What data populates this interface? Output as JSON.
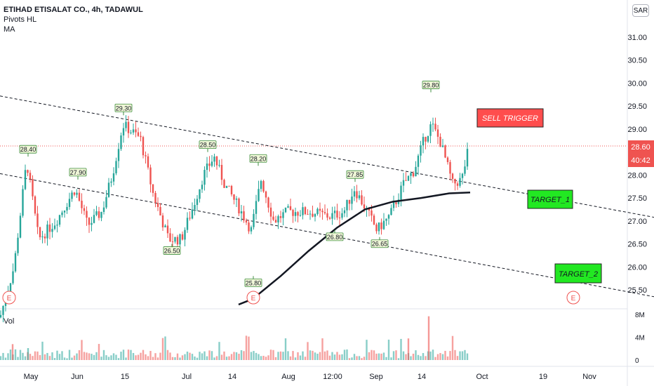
{
  "legend": {
    "title": "ETIHAD ETISALAT CO., 4h, TADAWUL",
    "line2": "Pivots HL",
    "line3": "MA"
  },
  "currency": "SAR",
  "volume_label": "Vol",
  "price_tag": "28.60",
  "countdown": "40:42",
  "colors": {
    "up": "#26a69a",
    "down": "#ef5350",
    "ma": "#131722",
    "trend": "#131722",
    "sell": "#ff4d4d",
    "target": "#22e822",
    "pivot_bg": "#f0f7d8",
    "pivot_border": "#3c8c3c",
    "price_tag": "#ef5350"
  },
  "annotations": {
    "sell": "SELL TRIGGER",
    "target1": "TARGET_1",
    "target2": "TARGET_2"
  },
  "chart_data": {
    "type": "candlestick",
    "ylim": [
      25.16,
      31.34
    ],
    "y_ticks": [
      "31.00",
      "30.50",
      "30.00",
      "29.50",
      "29.00",
      "28.50",
      "28.00",
      "27.50",
      "27.00",
      "26.50",
      "26.00",
      "25.50"
    ],
    "x_ticks": [
      "May",
      "Jun",
      "15",
      "Jul",
      "14",
      "Aug",
      "12:00",
      "Sep",
      "14",
      "Oct",
      "19",
      "Nov"
    ],
    "vol_ticks": [
      "8M",
      "4M",
      "0"
    ],
    "vol_max": 8,
    "last_price": 28.6,
    "pivots": [
      {
        "label": "28.40",
        "x": "May",
        "price": 28.4,
        "kind": "high"
      },
      {
        "label": "27.90",
        "x": "May-end",
        "price": 27.9,
        "kind": "high"
      },
      {
        "label": "29.30",
        "x": "Jun 15",
        "price": 29.3,
        "kind": "high"
      },
      {
        "label": "26.50",
        "x": "Jul 3",
        "price": 26.5,
        "kind": "low"
      },
      {
        "label": "28.50",
        "x": "Jul 11",
        "price": 28.5,
        "kind": "high"
      },
      {
        "label": "28.20",
        "x": "Jul 21",
        "price": 28.2,
        "kind": "high"
      },
      {
        "label": "25.80",
        "x": "Jul 20",
        "price": 25.8,
        "kind": "low"
      },
      {
        "label": "26.80",
        "x": "Aug 14",
        "price": 26.8,
        "kind": "low"
      },
      {
        "label": "27.85",
        "x": "Aug 22",
        "price": 27.85,
        "kind": "high"
      },
      {
        "label": "26.65",
        "x": "Sep 1",
        "price": 26.65,
        "kind": "low"
      },
      {
        "label": "29.80",
        "x": "Sep 15",
        "price": 29.8,
        "kind": "high"
      }
    ],
    "trendlines": [
      {
        "name": "upper",
        "from": [
          0,
          29.72
        ],
        "to": [
          932,
          27.08
        ]
      },
      {
        "name": "lower",
        "from": [
          0,
          28.03
        ],
        "to": [
          932,
          25.35
        ]
      }
    ],
    "ma": [
      [
        340,
        25.18
      ],
      [
        360,
        25.3
      ],
      [
        400,
        25.8
      ],
      [
        440,
        26.35
      ],
      [
        480,
        26.85
      ],
      [
        520,
        27.25
      ],
      [
        560,
        27.42
      ],
      [
        600,
        27.5
      ],
      [
        640,
        27.6
      ],
      [
        670,
        27.62
      ]
    ],
    "earnings_markers": [
      "May",
      "Jul 20",
      "Oct 27"
    ]
  }
}
